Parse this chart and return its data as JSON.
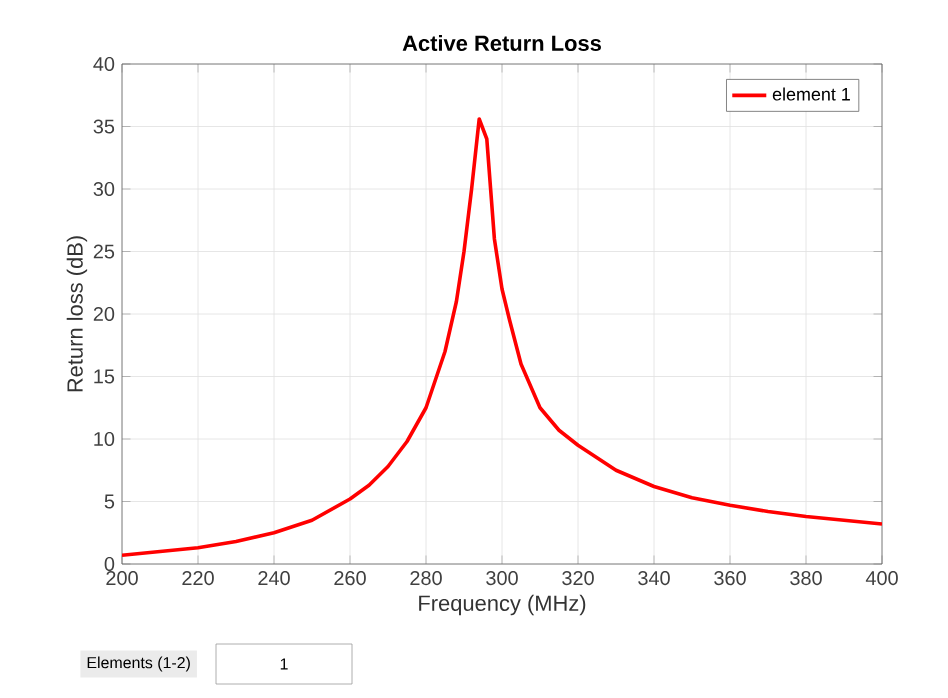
{
  "chart_data": {
    "type": "line",
    "title": "Active Return Loss",
    "xlabel": "Frequency (MHz)",
    "ylabel": "Return loss (dB)",
    "x": [
      200,
      210,
      220,
      230,
      240,
      250,
      260,
      265,
      270,
      275,
      280,
      285,
      288,
      290,
      292,
      294,
      296,
      297,
      298,
      300,
      302,
      305,
      310,
      315,
      320,
      330,
      340,
      350,
      360,
      370,
      380,
      390,
      400
    ],
    "series": [
      {
        "name": "element 1",
        "color": "#ff0000",
        "values": [
          0.7,
          1.0,
          1.3,
          1.8,
          2.5,
          3.5,
          5.2,
          6.3,
          7.8,
          9.8,
          12.5,
          17,
          21,
          25,
          30,
          35.6,
          34,
          30,
          26,
          22,
          19.5,
          16,
          12.5,
          10.7,
          9.5,
          7.5,
          6.2,
          5.3,
          4.7,
          4.2,
          3.8,
          3.5,
          3.2
        ]
      }
    ],
    "xlim": [
      200,
      400
    ],
    "ylim": [
      0,
      40
    ],
    "xticks": [
      200,
      220,
      240,
      260,
      280,
      300,
      320,
      340,
      360,
      380,
      400
    ],
    "yticks": [
      0,
      5,
      10,
      15,
      20,
      25,
      30,
      35,
      40
    ],
    "grid": true,
    "legend": "top right",
    "line_style": "solid",
    "marker": "none",
    "annotations": [
      "Elements (1-2)",
      "1"
    ]
  }
}
